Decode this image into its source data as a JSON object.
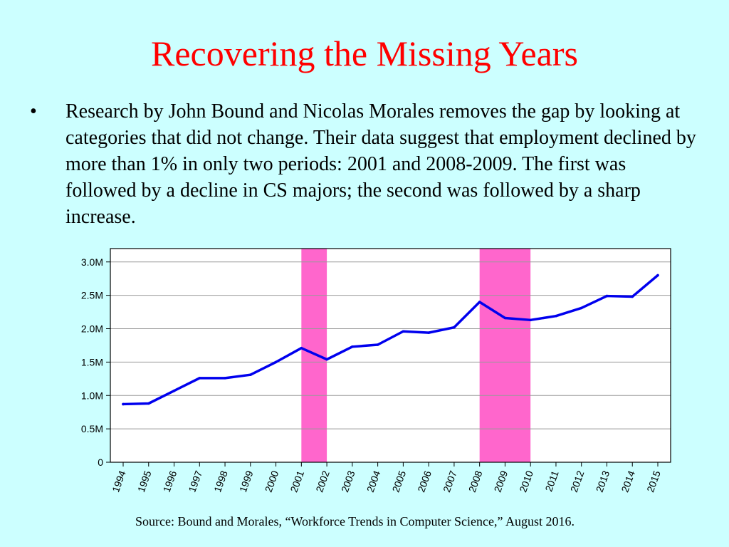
{
  "slide": {
    "title": "Recovering the Missing Years",
    "bullet_marker": "•",
    "body": "Research by John Bound and Nicolas Morales removes the gap by looking at categories that did not change. Their data suggest that employment declined by more than 1% in only two periods: 2001 and 2008-2009. The first was followed by a decline in CS majors; the second was followed by a sharp increase.",
    "source": "Source: Bound and Morales, “Workforce Trends in Computer Science,” August 2016."
  },
  "chart_data": {
    "type": "line",
    "title": "",
    "xlabel": "",
    "ylabel": "",
    "categories": [
      "1994",
      "1995",
      "1996",
      "1997",
      "1998",
      "1999",
      "2000",
      "2001",
      "2002",
      "2003",
      "2004",
      "2005",
      "2006",
      "2007",
      "2008",
      "2009",
      "2010",
      "2011",
      "2012",
      "2013",
      "2014",
      "2015"
    ],
    "series": [
      {
        "values": [
          0.87,
          0.88,
          1.07,
          1.26,
          1.26,
          1.31,
          1.5,
          1.71,
          1.54,
          1.73,
          1.76,
          1.96,
          1.94,
          2.02,
          2.4,
          2.16,
          2.13,
          2.19,
          2.31,
          2.49,
          2.48,
          2.8
        ],
        "color": "#0000ee"
      }
    ],
    "ylim": [
      0,
      3.2
    ],
    "yticks": [
      0,
      0.5,
      1.0,
      1.5,
      2.0,
      2.5,
      3.0
    ],
    "ytick_labels": [
      "0",
      "0.5M",
      "1.0M",
      "1.5M",
      "2.0M",
      "2.5M",
      "3.0M"
    ],
    "shaded_periods": [
      {
        "start": "2001",
        "end": "2002",
        "color": "#ff66cc"
      },
      {
        "start": "2008",
        "end": "2010",
        "color": "#ff66cc"
      }
    ],
    "grid": true,
    "legend": "none",
    "plot_background": "#ffffff"
  }
}
